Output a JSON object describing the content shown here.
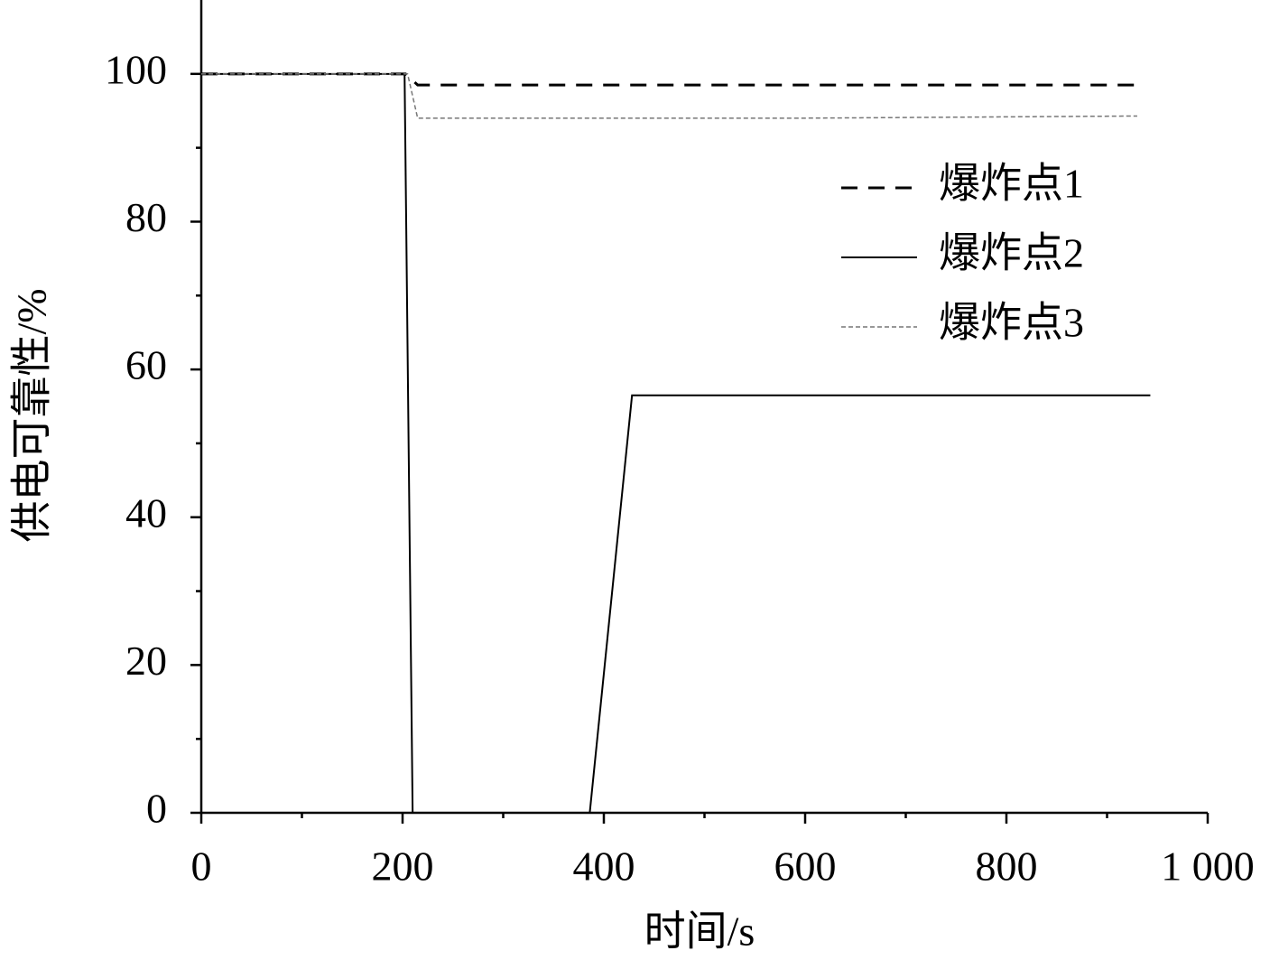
{
  "chart_data": {
    "type": "line",
    "xlabel": "时间/s",
    "ylabel": "供电可靠性/%",
    "xlim": [
      0,
      1000
    ],
    "ylim": [
      0,
      110
    ],
    "xticks": [
      0,
      200,
      400,
      600,
      800,
      {
        "value": 1000,
        "label": "1 000"
      }
    ],
    "yticks": [
      0,
      20,
      40,
      60,
      80,
      100
    ],
    "xminorticks": [
      100,
      300,
      500,
      700,
      900
    ],
    "yminorticks": [
      10,
      30,
      50,
      70,
      90
    ],
    "legend": "upper right",
    "series": [
      {
        "name": "爆炸点1",
        "color": "#000000",
        "style": "dashed",
        "x": [
          0,
          203,
          215,
          930
        ],
        "values": [
          100,
          100,
          98.5,
          98.5
        ]
      },
      {
        "name": "爆炸点2",
        "color": "#000000",
        "style": "solid",
        "x": [
          0,
          202,
          210,
          386,
          428,
          943
        ],
        "values": [
          100,
          100,
          0,
          0,
          56.5,
          56.5
        ]
      },
      {
        "name": "爆炸点3",
        "color": "#777777",
        "style": "dotted",
        "x": [
          0,
          205,
          215,
          590,
          930
        ],
        "values": [
          100,
          100,
          94,
          94,
          94.3
        ]
      }
    ]
  }
}
